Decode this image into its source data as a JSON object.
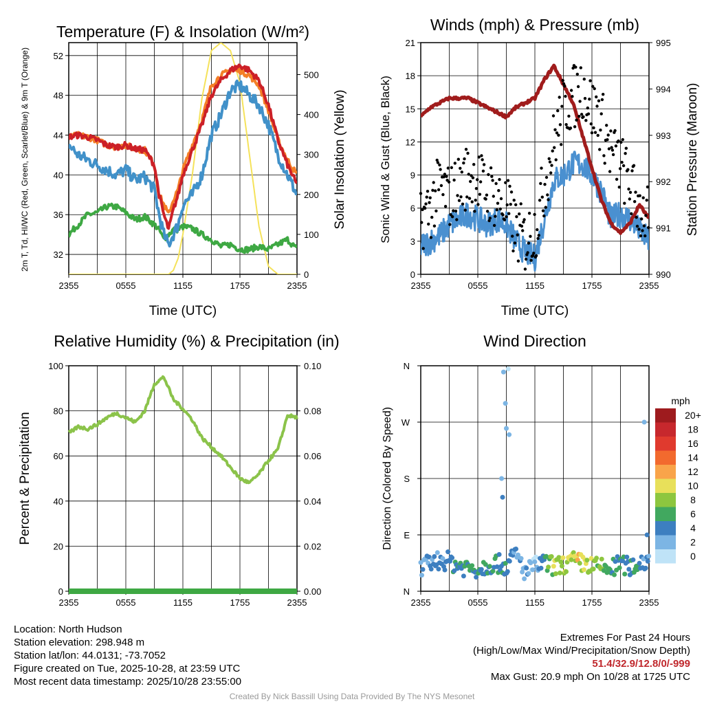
{
  "chart_data": [
    {
      "type": "line",
      "title": "Temperature (F) & Insolation (W/m²)",
      "xlabel": "Time (UTC)",
      "ylabel_left": "2m T, Td, HI/WC (Red, Green, Scarlet/Blue) & 9m T (Orange)",
      "ylabel_right": "Solar Insolation (Yellow)",
      "x_ticks": [
        "2355",
        "0555",
        "1155",
        "1755",
        "2355"
      ],
      "y_ticks_left": [
        "32",
        "36",
        "40",
        "44",
        "48",
        "52"
      ],
      "y_ticks_right": [
        "0",
        "100",
        "200",
        "300",
        "400",
        "500"
      ],
      "ylim_left": [
        30,
        53.3
      ],
      "ylim_right": [
        0,
        580
      ],
      "hours": [
        0,
        1,
        2,
        3,
        4,
        5,
        6,
        7,
        8,
        9,
        9.5,
        10,
        10.5,
        11,
        11.5,
        12,
        13,
        14,
        15,
        16,
        17,
        18,
        19,
        20,
        21,
        22,
        23,
        24
      ],
      "series": [
        {
          "name": "2m T",
          "color": "#cc2027",
          "axis": "left",
          "values": [
            43.8,
            44,
            43.8,
            43.5,
            43,
            42.8,
            43,
            42.6,
            42.5,
            41,
            38,
            36,
            34.5,
            36.5,
            38,
            40,
            42.5,
            45,
            48,
            49.5,
            50.5,
            51,
            50.5,
            49.5,
            47,
            43.5,
            41,
            39
          ]
        },
        {
          "name": "9m T",
          "color": "#f47f27",
          "axis": "left",
          "values": [
            43.8,
            44,
            43.8,
            43.5,
            43,
            42.8,
            43,
            42.6,
            42.5,
            41,
            38,
            37,
            36,
            37.5,
            38.5,
            40.5,
            43,
            45.5,
            49,
            50,
            50.5,
            50.5,
            50,
            49,
            46.5,
            43.5,
            41.5,
            40
          ]
        },
        {
          "name": "HI/WC",
          "color": "#4191c9",
          "axis": "left",
          "values": [
            43,
            42,
            41.5,
            41,
            40.5,
            40,
            40.5,
            39.5,
            39.8,
            38.5,
            36,
            34,
            33,
            34,
            35,
            37,
            38,
            40,
            44,
            46,
            48.5,
            49,
            48,
            47,
            45,
            42,
            40,
            38
          ]
        },
        {
          "name": "2m Td",
          "color": "#3ea843",
          "axis": "left",
          "values": [
            34,
            35,
            36,
            36.2,
            36.8,
            36.8,
            36.2,
            35.5,
            35.8,
            35,
            34.5,
            33.5,
            34,
            34.5,
            34.5,
            34.8,
            34.6,
            34,
            33.5,
            32.8,
            33,
            32.5,
            32.5,
            32.8,
            32.5,
            33,
            33.5,
            32.5
          ]
        },
        {
          "name": "Solar",
          "color": "#f5e25a",
          "axis": "right",
          "values": [
            0,
            0,
            0,
            0,
            0,
            0,
            0,
            0,
            0,
            0,
            0,
            0,
            0,
            10,
            40,
            100,
            250,
            440,
            560,
            580,
            560,
            480,
            300,
            120,
            20,
            0,
            0,
            0
          ]
        }
      ]
    },
    {
      "type": "line+scatter",
      "title": "Winds (mph) & Pressure (mb)",
      "xlabel": "Time (UTC)",
      "ylabel_left": "Sonic Wind & Gust (Blue, Black)",
      "ylabel_right": "Station Pressure (Maroon)",
      "x_ticks": [
        "2355",
        "0555",
        "1155",
        "1755",
        "2355"
      ],
      "y_ticks_left": [
        "0",
        "3",
        "6",
        "9",
        "12",
        "15",
        "18",
        "21"
      ],
      "y_ticks_right": [
        "990",
        "991",
        "992",
        "993",
        "994",
        "995"
      ],
      "ylim_left": [
        0,
        21
      ],
      "ylim_right": [
        990,
        995
      ],
      "hours": [
        0,
        1,
        2,
        3,
        4,
        5,
        6,
        7,
        8,
        9,
        10,
        11,
        12,
        13,
        14,
        15,
        16,
        17,
        18,
        19,
        20,
        21,
        22,
        23,
        24
      ],
      "series": [
        {
          "name": "Sonic Wind",
          "color": "#4a90d0",
          "axis": "left",
          "values": [
            2.5,
            3,
            3.5,
            4.5,
            5,
            5.5,
            5,
            4.5,
            5,
            4.5,
            3,
            2,
            1.5,
            5,
            8.5,
            9,
            10,
            10,
            9,
            7.5,
            5,
            5.5,
            5,
            4,
            3
          ]
        },
        {
          "name": "Station Pressure",
          "color": "#a01c1c",
          "axis": "right",
          "values": [
            993.4,
            993.6,
            993.7,
            993.8,
            993.8,
            993.8,
            993.7,
            993.6,
            993.5,
            993.4,
            993.6,
            993.7,
            993.8,
            994.2,
            994.5,
            994.1,
            993.7,
            993.0,
            992.3,
            991.6,
            991.1,
            990.9,
            991.1,
            991.5,
            991.2
          ]
        },
        {
          "name": "Gust",
          "color": "#000000",
          "axis": "left",
          "values": [
            5,
            6,
            8,
            7,
            8,
            9,
            8.5,
            7.5,
            7,
            6,
            4,
            3,
            4,
            8,
            12,
            15,
            16,
            17,
            15,
            14,
            11,
            10,
            8,
            6,
            5
          ]
        }
      ]
    },
    {
      "type": "line",
      "title": "Relative Humidity (%) & Precipitation (in)",
      "ylabel": "Percent & Precipitation",
      "x_ticks": [
        "2355",
        "0555",
        "1155",
        "1755",
        "2355"
      ],
      "y_ticks_left": [
        "0",
        "20",
        "40",
        "60",
        "80",
        "100"
      ],
      "y_ticks_right": [
        "0.00",
        "0.02",
        "0.04",
        "0.06",
        "0.08",
        "0.10"
      ],
      "ylim_left": [
        0,
        100
      ],
      "ylim_right": [
        0,
        0.1
      ],
      "hours": [
        0,
        1,
        2,
        3,
        4,
        5,
        6,
        7,
        8,
        9,
        10,
        11,
        12,
        13,
        14,
        15,
        16,
        17,
        18,
        19,
        20,
        21,
        22,
        23,
        24
      ],
      "series": [
        {
          "name": "Relative Humidity",
          "color": "#8bc34a",
          "axis": "left",
          "values": [
            70,
            73,
            72,
            74,
            77,
            79,
            77,
            75,
            80,
            92,
            95,
            85,
            81,
            76,
            68,
            64,
            60,
            55,
            50,
            48,
            52,
            58,
            63,
            78,
            77
          ]
        },
        {
          "name": "Precipitation",
          "color": "#3ea843",
          "axis": "right",
          "values": [
            0,
            0,
            0,
            0,
            0,
            0,
            0,
            0,
            0,
            0,
            0,
            0,
            0,
            0,
            0,
            0,
            0,
            0,
            0,
            0,
            0,
            0,
            0,
            0,
            0
          ]
        }
      ]
    },
    {
      "type": "scatter",
      "title": "Wind Direction",
      "ylabel": "Direction (Colored By Speed)",
      "x_ticks": [
        "2355",
        "0555",
        "1155",
        "1755",
        "2355"
      ],
      "y_ticks": [
        "N",
        "E",
        "S",
        "W",
        "N"
      ],
      "ylim": [
        0,
        360
      ],
      "legend_title": "mph",
      "legend_labels": [
        "20+",
        "18",
        "16",
        "14",
        "12",
        "10",
        "8",
        "6",
        "4",
        "2",
        "0"
      ],
      "legend_colors": [
        "#9e1b1e",
        "#c7282d",
        "#e03a2e",
        "#f26a2e",
        "#f9a44a",
        "#e8e05a",
        "#8dc63f",
        "#41a85f",
        "#3d7fc0",
        "#7cb5e4",
        "#bfe3f7"
      ],
      "hours": [
        0,
        1,
        2,
        3,
        4,
        5,
        6,
        7,
        8,
        9,
        10,
        11,
        12,
        13,
        14,
        15,
        16,
        17,
        18,
        19,
        20,
        21,
        22,
        23,
        24
      ],
      "series": [
        {
          "name": "Direction",
          "values": [
            35,
            45,
            50,
            48,
            40,
            38,
            35,
            42,
            45,
            40,
            60,
            30,
            40,
            45,
            40,
            42,
            48,
            45,
            40,
            38,
            35,
            45,
            38,
            45,
            50
          ]
        }
      ]
    }
  ],
  "footer": {
    "location": "Location: North Hudson",
    "elevation": "Station elevation: 298.948 m",
    "latlon": "Station lat/lon: 44.0131; -73.7052",
    "created": "Figure created on Tue, 2025-10-28, at 23:59 UTC",
    "recent": "Most recent data timestamp: 2025/10/28 23:55:00",
    "extremes_title": "Extremes For Past 24 Hours",
    "extremes_legend": "(High/Low/Max Wind/Precipitation/Snow Depth)",
    "extremes_values": "51.4/32.9/12.8/0/-999",
    "max_gust": "Max Gust: 20.9 mph On 10/28 at 1725 UTC",
    "credit": "Created By Nick Bassill Using Data Provided By The NYS Mesonet"
  }
}
